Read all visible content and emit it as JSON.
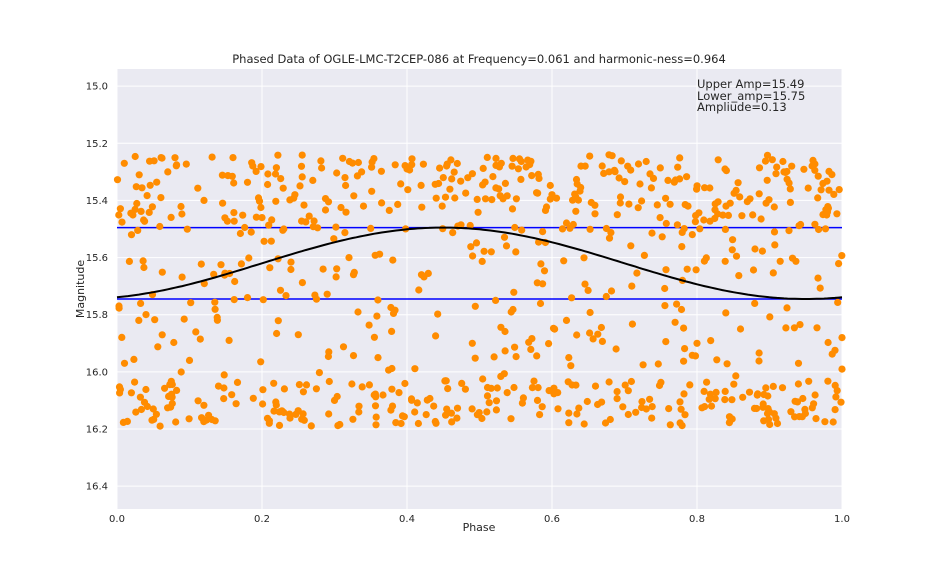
{
  "chart_data": {
    "type": "scatter",
    "title": "Phased Data of OGLE-LMC-T2CEP-086 at Frequency=0.061 and harmonic-ness=0.964",
    "xlabel": "Phase",
    "ylabel": "Magnitude",
    "xlim": [
      0.0,
      1.0
    ],
    "ylim": [
      16.48,
      14.94
    ],
    "y_inverted": true,
    "grid": true,
    "x_ticks": [
      0.0,
      0.2,
      0.4,
      0.6,
      0.8,
      1.0
    ],
    "x_tick_labels": [
      "0.0",
      "0.2",
      "0.4",
      "0.6",
      "0.8",
      "1.0"
    ],
    "y_ticks": [
      15.0,
      15.2,
      15.4,
      15.6,
      15.8,
      16.0,
      16.2,
      16.4
    ],
    "y_tick_labels": [
      "15.0",
      "15.2",
      "15.4",
      "15.6",
      "15.8",
      "16.0",
      "16.2",
      "16.4"
    ],
    "annotations": [
      "Upper Amp=15.49",
      "Lower_amp=15.75",
      "Ampliude=0.13"
    ],
    "hlines": [
      {
        "y": 15.495,
        "color": "#0000ff"
      },
      {
        "y": 15.745,
        "color": "#0000ff"
      }
    ],
    "fit_curve": {
      "color": "#000000",
      "mean": 15.62,
      "amplitude": 0.125,
      "peak_phase": 0.45
    },
    "series": [
      {
        "marker_color": "#ff8c00",
        "bands": [
          {
            "y_min": 15.24,
            "y_max": 15.52,
            "count": 330
          },
          {
            "y_min": 16.03,
            "y_max": 16.19,
            "count": 240
          },
          {
            "y_min": 15.52,
            "y_max": 16.03,
            "count": 200
          }
        ],
        "points": [
          [
            0.01,
            15.27
          ],
          [
            0.02,
            15.52
          ],
          [
            0.03,
            15.82
          ],
          [
            0.05,
            16.13
          ],
          [
            0.07,
            15.3
          ],
          [
            0.1,
            15.96
          ],
          [
            0.12,
            15.4
          ],
          [
            0.14,
            16.05
          ],
          [
            0.16,
            15.25
          ],
          [
            0.18,
            15.74
          ],
          [
            0.2,
            15.46
          ],
          [
            0.21,
            16.18
          ],
          [
            0.23,
            15.5
          ],
          [
            0.25,
            15.87
          ],
          [
            0.27,
            15.33
          ],
          [
            0.3,
            16.1
          ],
          [
            0.32,
            15.6
          ],
          [
            0.34,
            15.42
          ],
          [
            0.36,
            15.95
          ],
          [
            0.38,
            16.12
          ],
          [
            0.4,
            15.29
          ],
          [
            0.42,
            15.66
          ],
          [
            0.44,
            16.18
          ],
          [
            0.45,
            15.32
          ],
          [
            0.47,
            15.49
          ],
          [
            0.49,
            15.9
          ],
          [
            0.51,
            16.14
          ],
          [
            0.53,
            15.27
          ],
          [
            0.55,
            15.58
          ],
          [
            0.58,
            16.1
          ],
          [
            0.6,
            15.38
          ],
          [
            0.62,
            15.82
          ],
          [
            0.64,
            15.28
          ],
          [
            0.66,
            16.05
          ],
          [
            0.69,
            15.45
          ],
          [
            0.71,
            15.7
          ],
          [
            0.73,
            16.13
          ],
          [
            0.76,
            15.33
          ],
          [
            0.78,
            15.68
          ],
          [
            0.8,
            15.9
          ],
          [
            0.82,
            16.12
          ],
          [
            0.84,
            15.42
          ],
          [
            0.86,
            15.85
          ],
          [
            0.88,
            15.57
          ],
          [
            0.9,
            16.14
          ],
          [
            0.92,
            15.3
          ],
          [
            0.94,
            15.97
          ],
          [
            0.96,
            15.26
          ],
          [
            0.98,
            15.44
          ],
          [
            1.0,
            15.88
          ]
        ]
      }
    ]
  }
}
